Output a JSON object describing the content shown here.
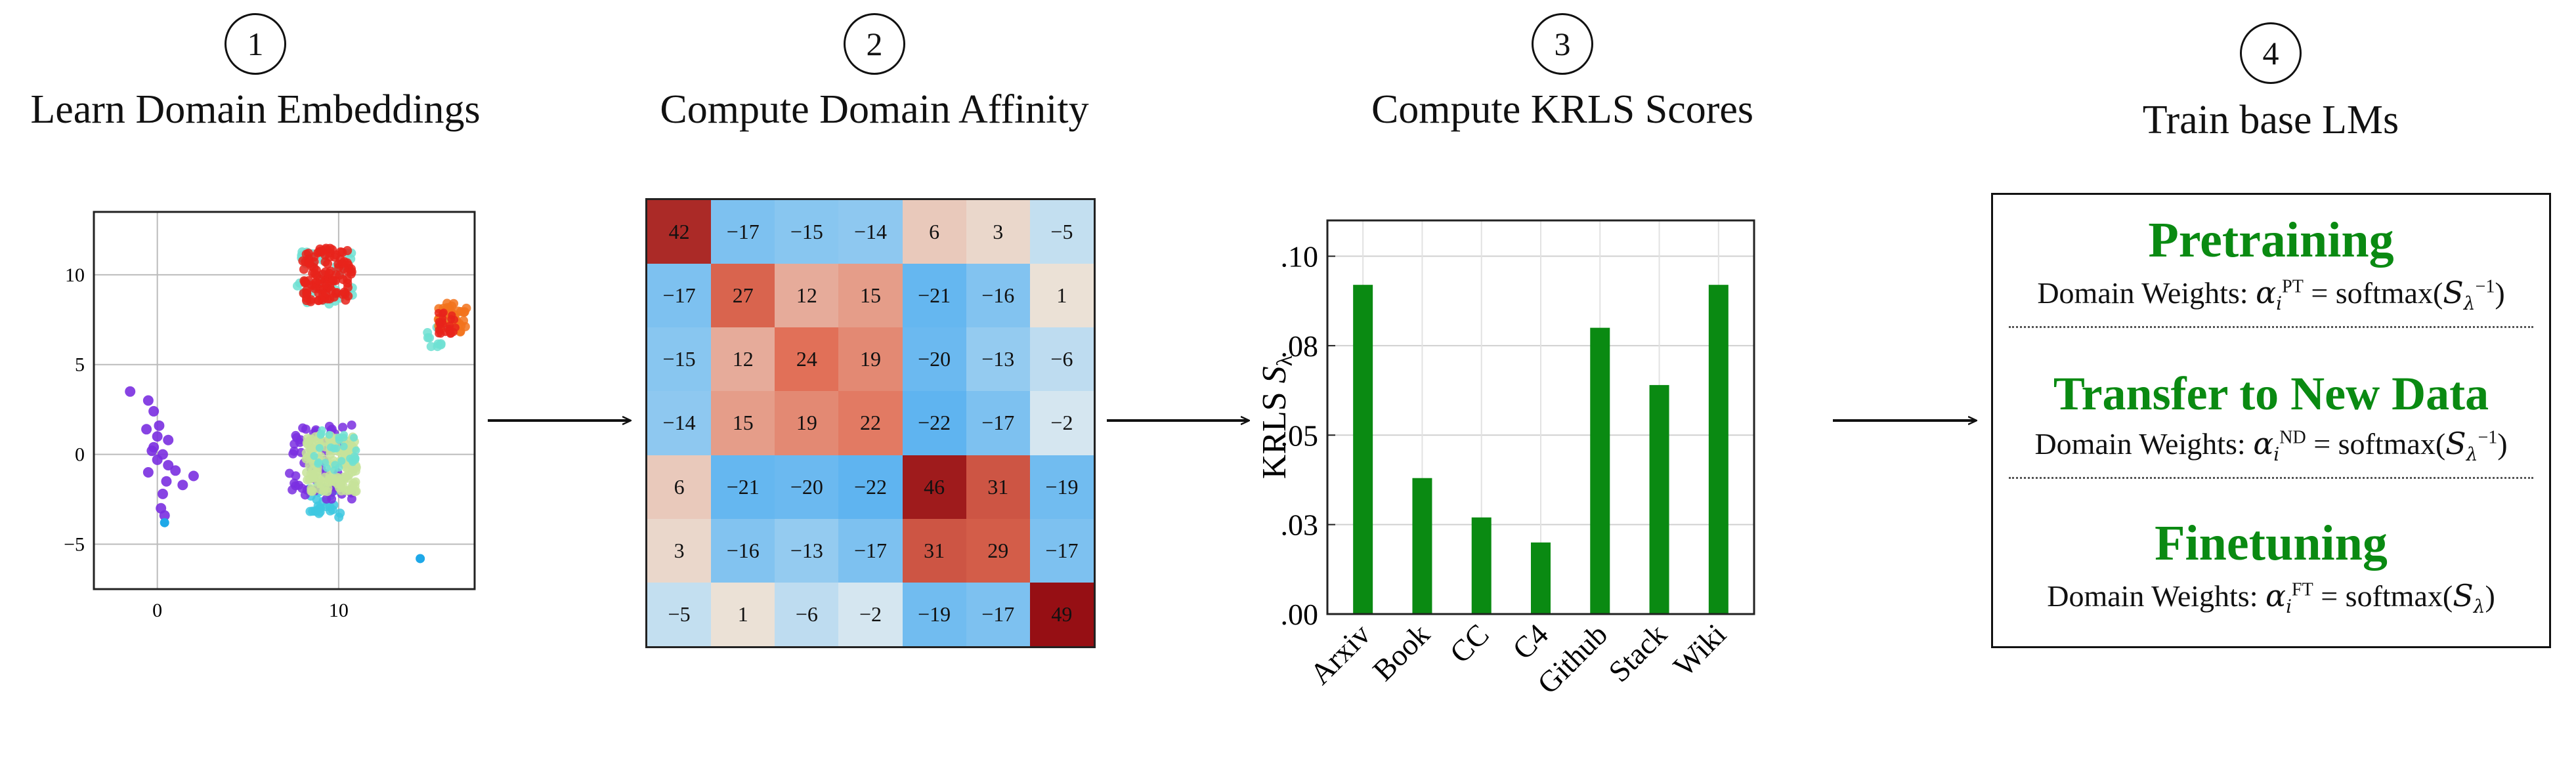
{
  "steps": [
    {
      "number": "1",
      "title": "Learn Domain Embeddings"
    },
    {
      "number": "2",
      "title": "Compute Domain Affinity"
    },
    {
      "number": "3",
      "title": "Compute KRLS Scores"
    },
    {
      "number": "4",
      "title": "Train base LMs"
    }
  ],
  "scatter": {
    "xticks": [
      "0",
      "10"
    ],
    "yticks": [
      "10",
      "5",
      "0",
      "−5"
    ],
    "colors": {
      "red": "#e8231b",
      "orange": "#f2731c",
      "cyan": "#3ec8e0",
      "purple": "#7a2fe0",
      "lightgreen": "#c7e39a",
      "teal": "#6ee0d2",
      "blue": "#1ea8e8"
    }
  },
  "heatmap": {
    "values": [
      [
        42,
        -17,
        -15,
        -14,
        6,
        3,
        -5
      ],
      [
        -17,
        27,
        12,
        15,
        -21,
        -16,
        1
      ],
      [
        -15,
        12,
        24,
        19,
        -20,
        -13,
        -6
      ],
      [
        -14,
        15,
        19,
        22,
        -22,
        -17,
        -2
      ],
      [
        6,
        -21,
        -20,
        -22,
        46,
        31,
        -19
      ],
      [
        3,
        -16,
        -13,
        -17,
        31,
        29,
        -17
      ],
      [
        -5,
        1,
        -6,
        -2,
        -19,
        -17,
        49
      ]
    ]
  },
  "chart_data": {
    "type": "bar",
    "categories": [
      "Arxiv",
      "Book",
      "CC",
      "C4",
      "Github",
      "Stack",
      "Wiki"
    ],
    "values": [
      0.092,
      0.038,
      0.027,
      0.02,
      0.08,
      0.064,
      0.092
    ],
    "yticks": [
      ".00",
      ".03",
      ".05",
      ".08",
      ".10"
    ],
    "ytick_values": [
      0.0,
      0.025,
      0.05,
      0.075,
      0.1
    ],
    "ylim": [
      0,
      0.11
    ],
    "ylabel_text": "KRLS",
    "ylabel_symbol": "S",
    "ylabel_sub": "λ",
    "bar_color": "#0a8a12",
    "grid": true
  },
  "lm_box": {
    "sections": [
      {
        "title": "Pretraining",
        "label": "Domain Weights: ",
        "alpha": "α",
        "sub": "i",
        "sup": "PT",
        "eq": " = softmax(",
        "S": "S",
        "ssub": "λ",
        "ssup": "−1",
        "close": ")"
      },
      {
        "title": "Transfer to New Data",
        "label": "Domain Weights: ",
        "alpha": "α",
        "sub": "i",
        "sup": "ND",
        "eq": " = softmax(",
        "S": "S",
        "ssub": "λ",
        "ssup": "−1",
        "close": ")"
      },
      {
        "title": "Finetuning",
        "label": "Domain Weights: ",
        "alpha": "α",
        "sub": "i",
        "sup": "FT",
        "eq": " = softmax(",
        "S": "S",
        "ssub": "λ",
        "ssup": "",
        "close": ")"
      }
    ]
  }
}
